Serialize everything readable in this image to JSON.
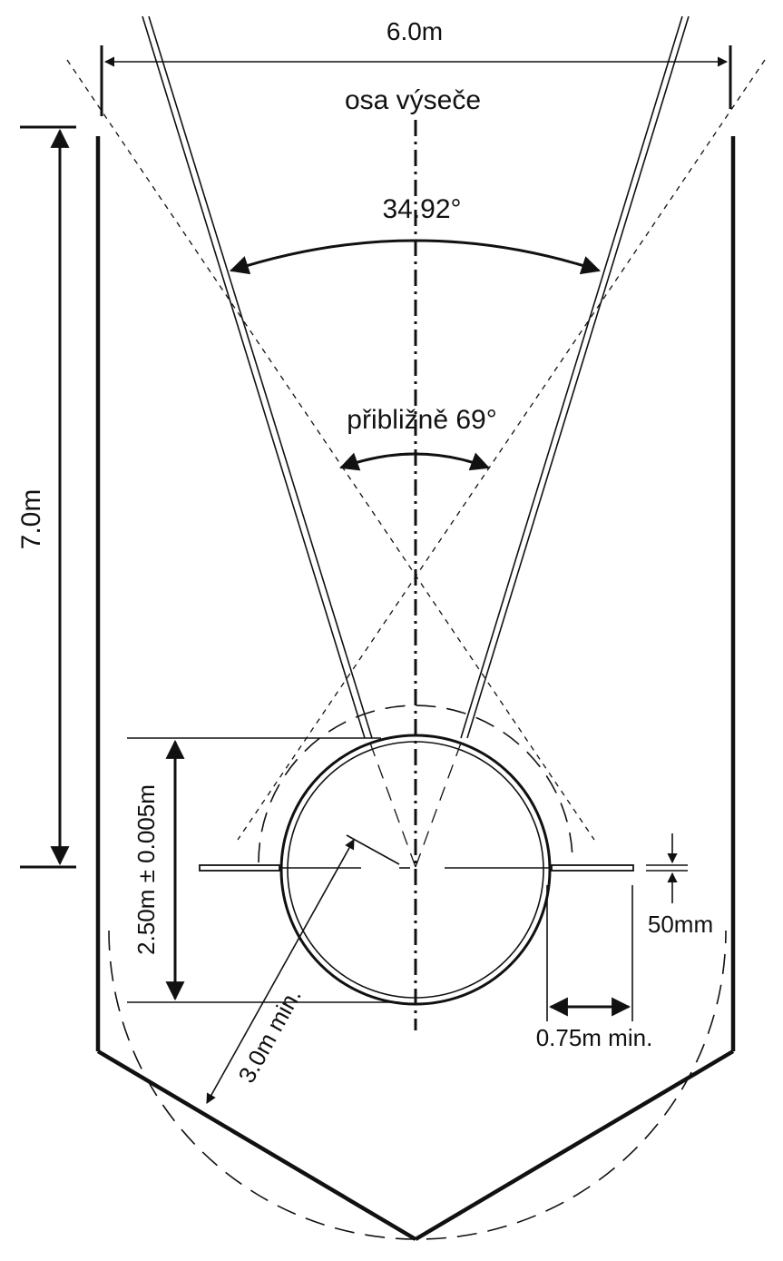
{
  "labels": {
    "width": "6.0m",
    "axis": "osa výseče",
    "sector_angle": "34.92°",
    "approx_angle": "přibližně 69°",
    "height": "7.0m",
    "diameter": "2.50m ± 0.005m",
    "band_width": "50mm",
    "side_clearance": "0.75m min.",
    "radius": "3.0m min."
  }
}
